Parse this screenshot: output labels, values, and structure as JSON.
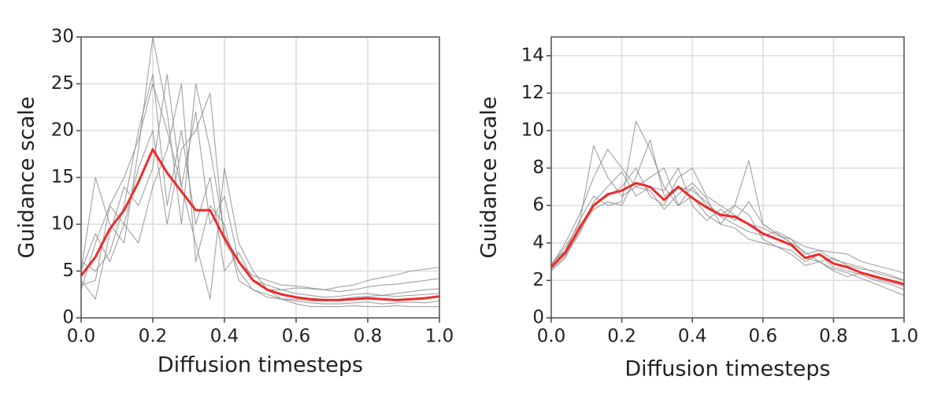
{
  "chart_data": [
    {
      "type": "line",
      "xlabel": "Diffusion timesteps",
      "ylabel": "Guidance scale",
      "xlim": [
        0,
        1
      ],
      "ylim": [
        0,
        30
      ],
      "xticks": [
        {
          "value": 0,
          "label": "0.0"
        },
        0.2,
        0.4,
        0.6,
        0.8,
        {
          "value": 1,
          "label": "1.0"
        }
      ],
      "yticks": [
        0,
        5,
        10,
        15,
        20,
        25,
        30
      ],
      "grid": true,
      "x": [
        0,
        0.04,
        0.08,
        0.12,
        0.16,
        0.2,
        0.24,
        0.28,
        0.32,
        0.36,
        0.4,
        0.44,
        0.48,
        0.52,
        0.56,
        0.6,
        0.64,
        0.68,
        0.72,
        0.76,
        0.8,
        0.84,
        0.88,
        0.92,
        0.96,
        1
      ],
      "series": [
        {
          "color": "#8a8a8a",
          "values": [
            3,
            8,
            12,
            15,
            19,
            25,
            20,
            14,
            22,
            10,
            13,
            6,
            4,
            3,
            3,
            3.2,
            3.1,
            3,
            2.8,
            3,
            3.3,
            3.5,
            3.6,
            3.8,
            4,
            4.2
          ]
        },
        {
          "color": "#8a8a8a",
          "values": [
            5,
            15,
            10,
            8,
            18,
            30,
            22,
            10,
            25,
            18,
            9,
            5,
            3,
            2.5,
            2,
            1.8,
            1.6,
            1.5,
            1.5,
            1.6,
            1.7,
            1.5,
            1.6,
            1.7,
            1.6,
            1.8
          ]
        },
        {
          "color": "#8a8a8a",
          "values": [
            4,
            2,
            9,
            14,
            12,
            16,
            26,
            14,
            8,
            2,
            16,
            8,
            5,
            3,
            2,
            1.5,
            1.2,
            1.2,
            1.2,
            1.3,
            1.2,
            1.2,
            1.3,
            1.2,
            1.2,
            1.2
          ]
        },
        {
          "color": "#8a8a8a",
          "values": [
            6,
            5,
            7,
            12,
            20,
            26,
            12,
            20,
            10,
            15,
            5,
            7,
            4,
            3.5,
            3,
            2.6,
            2.4,
            2.2,
            2.3,
            2.5,
            2.6,
            2.4,
            2.3,
            2.4,
            2.5,
            2.6
          ]
        },
        {
          "color": "#8a8a8a",
          "values": [
            3.5,
            4,
            12,
            10,
            8,
            14,
            18,
            25,
            6,
            12,
            10,
            4,
            3,
            2.2,
            2,
            2,
            1.8,
            1.8,
            2,
            2.2,
            2.3,
            2.4,
            2.6,
            2.8,
            3,
            3.1
          ]
        },
        {
          "color": "#8a8a8a",
          "values": [
            5,
            9,
            6,
            10,
            16,
            20,
            10,
            18,
            20,
            24,
            8,
            6,
            4.5,
            4,
            3.5,
            3.4,
            3.2,
            3,
            3.3,
            3.5,
            4,
            4.3,
            4.6,
            5,
            5.2,
            5.4
          ]
        },
        {
          "color": "#f02a2a",
          "values": [
            4.5,
            6.5,
            9.5,
            11.5,
            14.5,
            18,
            15.5,
            13.5,
            11.5,
            11.5,
            8.5,
            6,
            4,
            3,
            2.5,
            2.2,
            2,
            1.9,
            1.9,
            2,
            2.1,
            2,
            1.9,
            2,
            2.1,
            2.3
          ]
        }
      ]
    },
    {
      "type": "line",
      "xlabel": "Diffusion timesteps",
      "ylabel": "Guidance scale",
      "xlim": [
        0,
        1
      ],
      "ylim": [
        0,
        15
      ],
      "xticks": [
        {
          "value": 0,
          "label": "0.0"
        },
        0.2,
        0.4,
        0.6,
        0.8,
        {
          "value": 1,
          "label": "1.0"
        }
      ],
      "yticks": [
        0,
        2,
        4,
        6,
        8,
        10,
        12,
        14
      ],
      "grid": true,
      "x": [
        0,
        0.04,
        0.08,
        0.12,
        0.16,
        0.2,
        0.24,
        0.28,
        0.32,
        0.36,
        0.4,
        0.44,
        0.48,
        0.52,
        0.56,
        0.6,
        0.64,
        0.68,
        0.72,
        0.76,
        0.8,
        0.84,
        0.88,
        0.92,
        0.96,
        1
      ],
      "series": [
        {
          "color": "#8a8a8a",
          "values": [
            2.8,
            4,
            5.5,
            7.5,
            9,
            8,
            7,
            7.5,
            8,
            6,
            7,
            6,
            5.5,
            6,
            8.4,
            5,
            4.5,
            4,
            3.5,
            3,
            3.2,
            2.8,
            2.6,
            2.5,
            2.3,
            2
          ]
        },
        {
          "color": "#8a8a8a",
          "values": [
            2.6,
            3.3,
            4.5,
            6,
            6.5,
            7,
            8,
            6.5,
            6,
            7.5,
            8,
            6.5,
            6,
            5.5,
            5,
            4.8,
            4.4,
            4.2,
            3.4,
            3.6,
            3.1,
            2.9,
            2.7,
            2.4,
            2.2,
            2
          ]
        },
        {
          "color": "#8a8a8a",
          "values": [
            2.9,
            3.6,
            5.2,
            6.5,
            6,
            6.2,
            10.5,
            9,
            7,
            6,
            6.5,
            5.5,
            5,
            6,
            5.5,
            4.2,
            3.8,
            3.6,
            3,
            3.4,
            2.7,
            2.5,
            2.3,
            2,
            1.8,
            1.5
          ]
        },
        {
          "color": "#8a8a8a",
          "values": [
            2.7,
            3.4,
            4.6,
            6.2,
            7,
            7.8,
            6.5,
            7,
            6.8,
            8,
            6,
            5.2,
            5.8,
            5.2,
            6.2,
            5,
            4.5,
            4,
            3.2,
            3,
            2.6,
            2.4,
            2.1,
            1.8,
            1.5,
            1.2
          ]
        },
        {
          "color": "#8a8a8a",
          "values": [
            2.5,
            3.2,
            4.8,
            5.8,
            6.2,
            6,
            7.5,
            9.5,
            6.5,
            7,
            6.8,
            6.2,
            5.4,
            5,
            4.6,
            4.4,
            4.6,
            4.2,
            3.8,
            3.6,
            3.5,
            3.4,
            3,
            2.8,
            2.6,
            2.4
          ]
        },
        {
          "color": "#8a8a8a",
          "values": [
            2.8,
            3.8,
            5,
            9.2,
            7.5,
            6.5,
            7,
            6.8,
            5.8,
            6.6,
            7.2,
            6.4,
            5,
            4.8,
            4.2,
            4,
            3.8,
            3.4,
            2.8,
            3,
            2.5,
            2.2,
            2.4,
            2.1,
            1.9,
            1.7
          ]
        },
        {
          "color": "#f02a2a",
          "values": [
            2.7,
            3.5,
            4.8,
            6,
            6.6,
            6.8,
            7.2,
            7,
            6.3,
            7,
            6.4,
            5.9,
            5.5,
            5.4,
            5,
            4.5,
            4.2,
            3.9,
            3.2,
            3.4,
            2.9,
            2.7,
            2.4,
            2.2,
            2,
            1.8
          ]
        }
      ]
    }
  ]
}
